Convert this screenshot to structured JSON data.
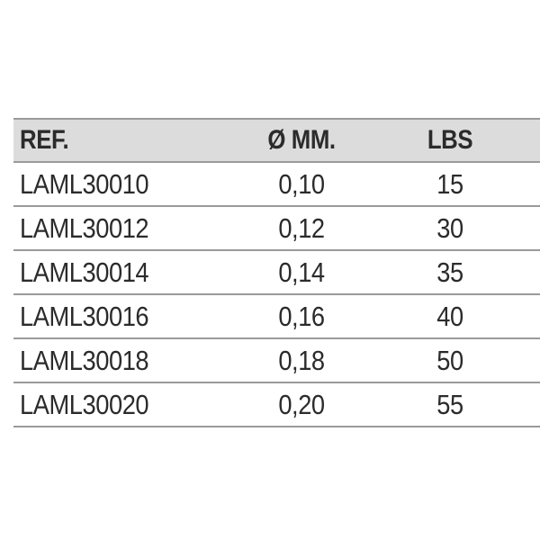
{
  "table": {
    "headers": {
      "ref": "REF.",
      "diameter": "Ø MM.",
      "lbs": "LBS"
    },
    "rows": [
      {
        "ref": "LAML30010",
        "diameter": "0,10",
        "lbs": "15"
      },
      {
        "ref": "LAML30012",
        "diameter": "0,12",
        "lbs": "30"
      },
      {
        "ref": "LAML30014",
        "diameter": "0,14",
        "lbs": "35"
      },
      {
        "ref": "LAML30016",
        "diameter": "0,16",
        "lbs": "40"
      },
      {
        "ref": "LAML30018",
        "diameter": "0,18",
        "lbs": "50"
      },
      {
        "ref": "LAML30020",
        "diameter": "0,20",
        "lbs": "55"
      }
    ]
  },
  "colors": {
    "header_background": "#dcdcdc",
    "rule": "#9a9a9a",
    "text": "#2b2b2b"
  }
}
